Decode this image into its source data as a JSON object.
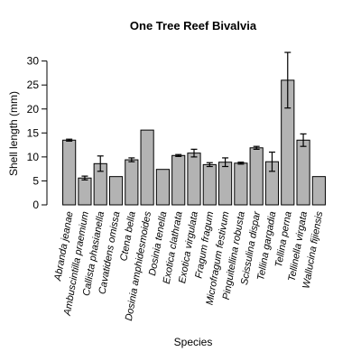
{
  "chart_data": {
    "type": "bar",
    "title": "One Tree Reef Bivalvia",
    "xlabel": "Species",
    "ylabel": "Shell length (mm)",
    "ylim": [
      0,
      32
    ],
    "yticks": [
      0,
      5,
      10,
      15,
      20,
      25,
      30
    ],
    "grid": false,
    "legend": "none",
    "bar_color": "#b3b3b3",
    "edge_color": "#000000",
    "categories": [
      "Abranda jeanae",
      "Ambuscintilla praemium",
      "Callista phasianella",
      "Cavatidens omissa",
      "Ctena bella",
      "Dosinia amphidesmoides",
      "Dosinia tenella",
      "Exotica clathrata",
      "Exotica virgulata",
      "Fragum fragum",
      "Microfragum festivum",
      "Pinguitellina robusta",
      "Scissulina dispar",
      "Tellina gargadia",
      "Tellina perna",
      "Tellinella virgata",
      "Wallucina fijiensis"
    ],
    "values": [
      13.5,
      5.6,
      8.6,
      5.9,
      9.4,
      15.6,
      7.4,
      10.3,
      10.8,
      8.4,
      8.9,
      8.7,
      11.9,
      9.0,
      26.0,
      13.5,
      5.9
    ],
    "errors": [
      0.2,
      0.4,
      1.6,
      null,
      0.4,
      null,
      null,
      0.2,
      0.8,
      0.4,
      0.9,
      0.2,
      0.3,
      2.0,
      5.8,
      1.3,
      null
    ]
  }
}
